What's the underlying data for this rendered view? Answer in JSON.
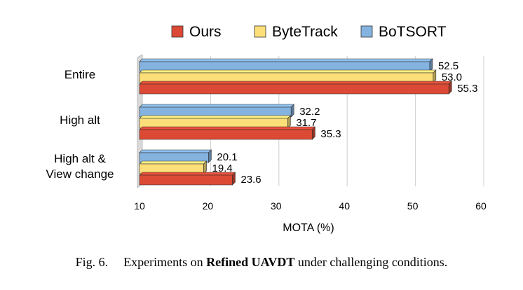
{
  "chart_data": {
    "type": "bar",
    "orientation": "horizontal",
    "style": "3d",
    "categories": [
      "Entire",
      "High alt",
      "High alt & View change"
    ],
    "category_lines": [
      [
        "Entire"
      ],
      [
        "High alt"
      ],
      [
        "High alt &",
        "View change"
      ]
    ],
    "series": [
      {
        "name": "Ours",
        "color": "#dc4a35",
        "values": [
          55.3,
          35.3,
          23.6
        ],
        "labels": [
          "55.3",
          "35.3",
          "23.6"
        ]
      },
      {
        "name": "ByteTrack",
        "color": "#fcdf78",
        "values": [
          53.0,
          31.7,
          19.4
        ],
        "labels": [
          "53.0",
          "31.7",
          "19.4"
        ]
      },
      {
        "name": "BoTSORT",
        "color": "#85b3e0",
        "values": [
          52.5,
          32.2,
          20.1
        ],
        "labels": [
          "52.5",
          "32.2",
          "20.1"
        ]
      }
    ],
    "bar_order_top_to_bottom": [
      "BoTSORT",
      "ByteTrack",
      "Ours"
    ],
    "xlabel": "MOTA (%)",
    "xlim": [
      10,
      60
    ],
    "xticks": [
      10,
      20,
      30,
      40,
      50,
      60
    ],
    "grid": "vertical",
    "legend_position": "top",
    "legend_order": [
      "Ours",
      "ByteTrack",
      "BoTSORT"
    ]
  },
  "caption": {
    "label": "Fig. 6.",
    "text_before": "Experiments on ",
    "text_bold": "Refined UAVDT",
    "text_after": " under challenging conditions."
  }
}
